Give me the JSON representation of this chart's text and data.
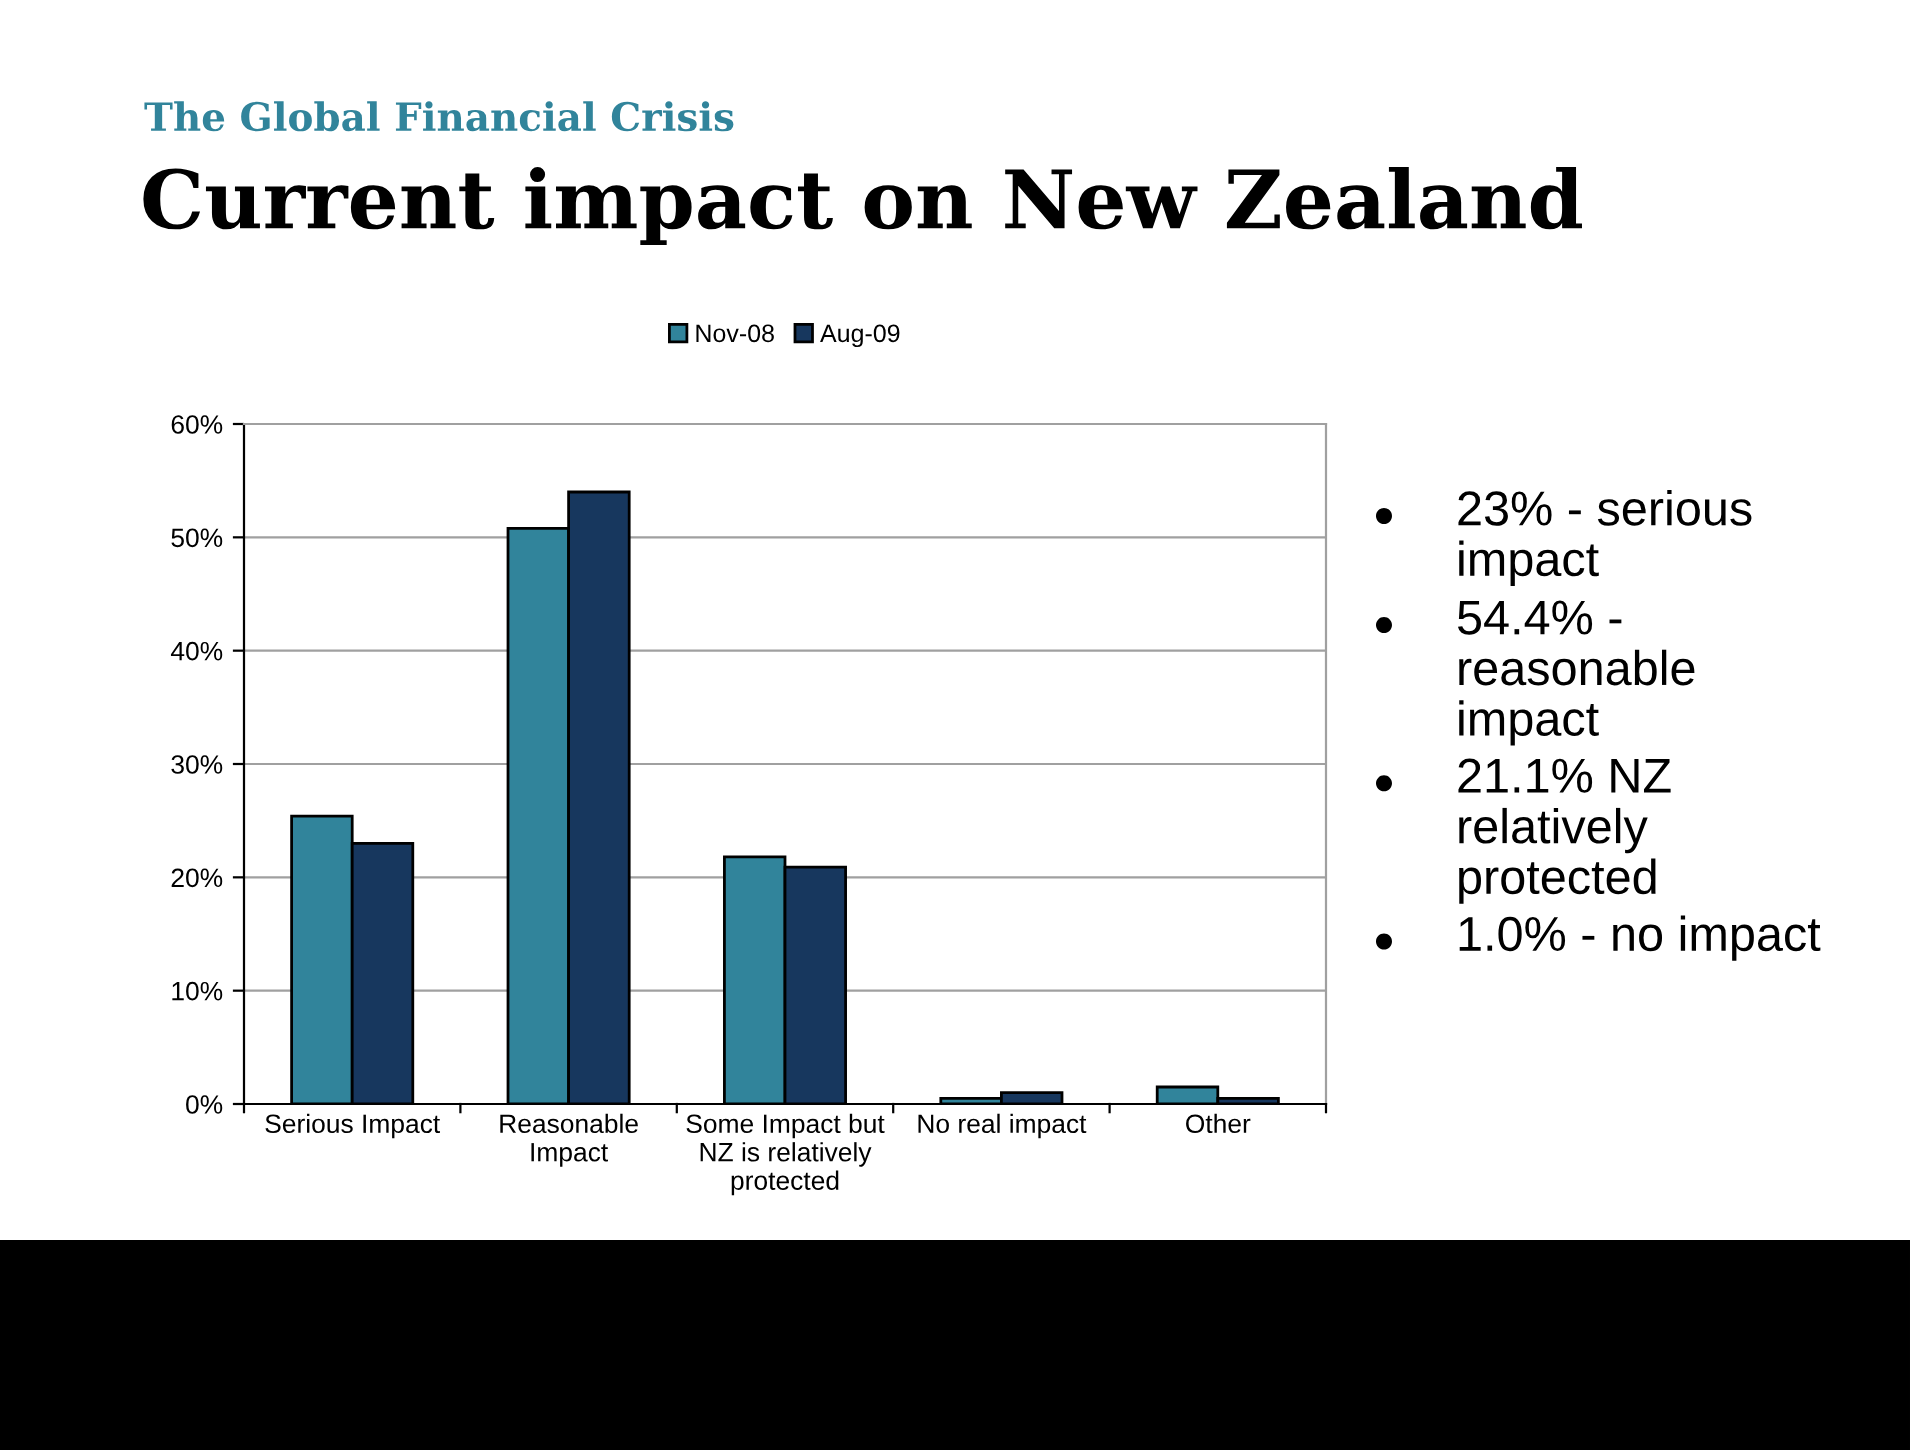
{
  "chart_data": {
    "type": "bar",
    "subtitle": "The Global Financial Crisis",
    "title": "Current impact on New Zealand",
    "categories": [
      "Serious Impact",
      "Reasonable\nImpact",
      "Some Impact but\nNZ is relatively\nprotected",
      "No real impact",
      "Other"
    ],
    "series": [
      {
        "name": "Nov-08",
        "color": "#31849b",
        "values": [
          25.4,
          50.8,
          21.8,
          0.5,
          1.5
        ]
      },
      {
        "name": "Aug-09",
        "color": "#17375e",
        "values": [
          23.0,
          54.0,
          20.9,
          1.0,
          0.5
        ]
      }
    ],
    "ylim": [
      0,
      60
    ],
    "yticks": [
      {
        "value": 0,
        "label": "0%"
      },
      {
        "value": 10,
        "label": "10%"
      },
      {
        "value": 20,
        "label": "20%"
      },
      {
        "value": 30,
        "label": "30%"
      },
      {
        "value": 40,
        "label": "40%"
      },
      {
        "value": 50,
        "label": "50%"
      },
      {
        "value": 60,
        "label": "60%"
      }
    ],
    "grid": "y",
    "legend": "top",
    "annotations": [
      "23% - serious\nimpact",
      "54.4% -\nreasonable\nimpact",
      "21.1% NZ\nrelatively\nprotected",
      "1.0% - no impact"
    ]
  }
}
